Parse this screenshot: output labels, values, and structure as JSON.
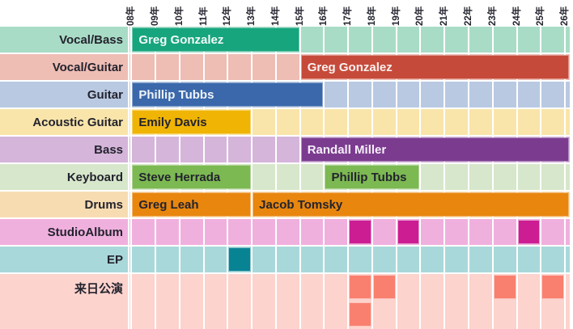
{
  "chart_data": {
    "type": "gantt",
    "title": "",
    "x_tick_labels": [
      "08年",
      "09年",
      "10年",
      "11年",
      "12年",
      "13年",
      "14年",
      "15年",
      "16年",
      "17年",
      "18年",
      "19年",
      "20年",
      "21年",
      "22年",
      "23年",
      "24年",
      "25年",
      "26年"
    ],
    "x_tick_years": [
      2008,
      2009,
      2010,
      2011,
      2012,
      2013,
      2014,
      2015,
      2016,
      2017,
      2018,
      2019,
      2020,
      2021,
      2022,
      2023,
      2024,
      2025,
      2026
    ],
    "xlim": [
      2007.92,
      2026.2
    ],
    "grid": true,
    "gridline_color": "#ffffff",
    "background": "#ffffff",
    "label_text_color": "#23232e",
    "rows": [
      {
        "id": "vocal-bass",
        "label": "Vocal/Bass",
        "track_color": "#a9dcc6",
        "bars": [
          {
            "label": "Greg Gonzalez",
            "start": 2008,
            "end": 2015,
            "color": "#17a57e",
            "text_color": "#f4faf8"
          }
        ]
      },
      {
        "id": "vocal-guitar",
        "label": "Vocal/Guitar",
        "track_color": "#eebdb4",
        "bars": [
          {
            "label": "Greg Gonzalez",
            "start": 2015,
            "end": 2026.2,
            "color": "#c64a3a",
            "text_color": "#faf1ef"
          }
        ]
      },
      {
        "id": "guitar",
        "label": "Guitar",
        "track_color": "#b9c9e2",
        "bars": [
          {
            "label": "Phillip Tubbs",
            "start": 2008,
            "end": 2016,
            "color": "#3a68aa",
            "text_color": "#f0f4f9"
          }
        ]
      },
      {
        "id": "acoustic-guitar",
        "label": "Acoustic Guitar",
        "track_color": "#f9e5aa",
        "bars": [
          {
            "label": "Emily Davis",
            "start": 2008,
            "end": 2013,
            "color": "#f0b404",
            "text_color": "#23232e"
          }
        ]
      },
      {
        "id": "bass",
        "label": "Bass",
        "track_color": "#d5b5da",
        "bars": [
          {
            "label": "Randall Miller",
            "start": 2015,
            "end": 2026.2,
            "color": "#7b3c90",
            "text_color": "#f6eff8"
          }
        ]
      },
      {
        "id": "keyboard",
        "label": "Keyboard",
        "track_color": "#d7e7cb",
        "bars": [
          {
            "label": "Steve Herrada",
            "start": 2008,
            "end": 2013,
            "color": "#7cb952",
            "text_color": "#23232e"
          },
          {
            "label": "Phillip Tubbs",
            "start": 2016,
            "end": 2020,
            "color": "#7cb952",
            "text_color": "#23232e"
          }
        ]
      },
      {
        "id": "drums",
        "label": "Drums",
        "track_color": "#f7dcb2",
        "bars": [
          {
            "label": "Greg Leah",
            "start": 2008,
            "end": 2013,
            "color": "#e8860e",
            "text_color": "#23232e"
          },
          {
            "label": "Jacob Tomsky",
            "start": 2013,
            "end": 2026.2,
            "color": "#e8860e",
            "text_color": "#23232e"
          }
        ]
      },
      {
        "id": "studio-album",
        "label": "StudioAlbum",
        "track_color": "#f0b0de",
        "cell_color": "#cc1d93",
        "cells": [
          2017,
          2019,
          2024
        ]
      },
      {
        "id": "ep",
        "label": "EP",
        "track_color": "#a9d8da",
        "cell_color": "#088394",
        "cells": [
          2012
        ]
      },
      {
        "id": "japan-shows",
        "label": "来日公演",
        "track_color": "#fdd3cd",
        "cell_color": "#f9806f",
        "tall": true,
        "lanes": [
          [
            2017,
            2018,
            2023,
            2025
          ],
          [
            2017
          ]
        ]
      }
    ]
  }
}
